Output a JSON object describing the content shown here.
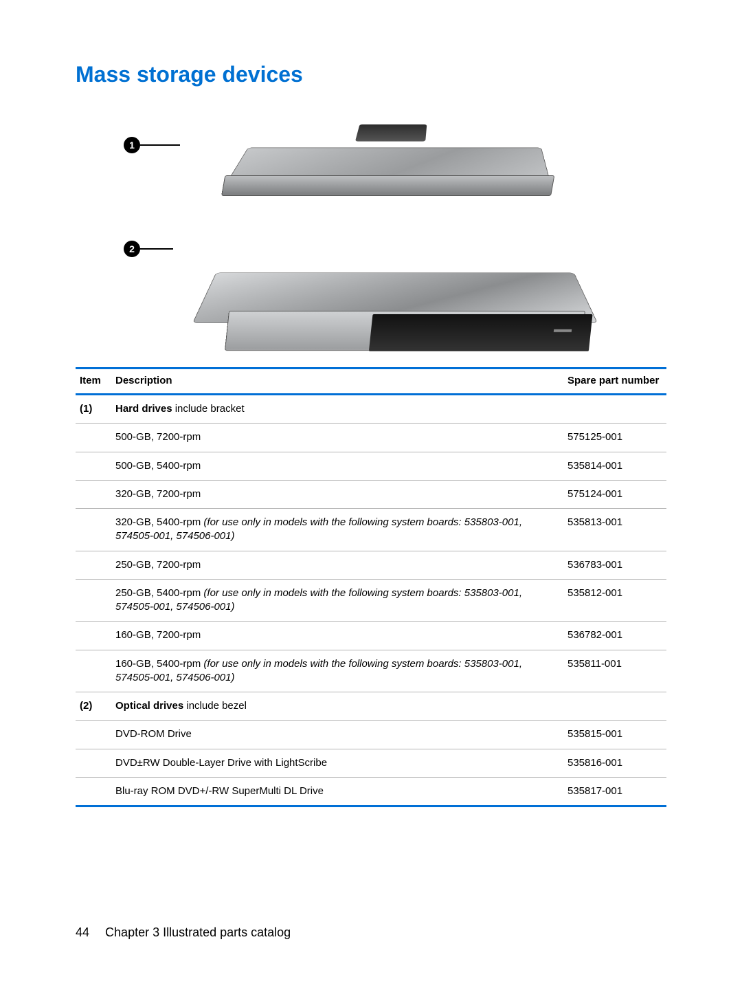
{
  "title": "Mass storage devices",
  "callouts": {
    "one": "1",
    "two": "2"
  },
  "table": {
    "headers": {
      "item": "Item",
      "desc": "Description",
      "spn": "Spare part number"
    },
    "groups": [
      {
        "item": "(1)",
        "label_bold": "Hard drives",
        "label_rest": " include bracket",
        "rows": [
          {
            "desc_plain": "500-GB, 7200-rpm",
            "spn": "575125-001"
          },
          {
            "desc_plain": "500-GB, 5400-rpm",
            "spn": "535814-001"
          },
          {
            "desc_plain": "320-GB, 7200-rpm",
            "spn": "575124-001"
          },
          {
            "desc_plain": "320-GB, 5400-rpm ",
            "desc_italic": "(for use only in models with the following system boards: 535803-001, 574505-001, 574506-001)",
            "spn": "535813-001"
          },
          {
            "desc_plain": "250-GB, 7200-rpm",
            "spn": "536783-001"
          },
          {
            "desc_plain": "250-GB, 5400-rpm ",
            "desc_italic": "(for use only in models with the following system boards: 535803-001, 574505-001, 574506-001)",
            "spn": "535812-001"
          },
          {
            "desc_plain": "160-GB, 7200-rpm",
            "spn": "536782-001"
          },
          {
            "desc_plain": "160-GB, 5400-rpm ",
            "desc_italic": "(for use only in models with the following system boards: 535803-001, 574505-001, 574506-001)",
            "spn": "535811-001"
          }
        ]
      },
      {
        "item": "(2)",
        "label_bold": "Optical drives",
        "label_rest": " include bezel",
        "rows": [
          {
            "desc_plain": "DVD-ROM Drive",
            "spn": "535815-001"
          },
          {
            "desc_plain": "DVD±RW Double-Layer Drive with LightScribe",
            "spn": "535816-001"
          },
          {
            "desc_plain": "Blu-ray ROM DVD+/-RW SuperMulti DL Drive",
            "spn": "535817-001"
          }
        ]
      }
    ]
  },
  "footer": {
    "page": "44",
    "chapter": "Chapter 3   Illustrated parts catalog"
  },
  "colors": {
    "accent": "#006fd6",
    "rule": "#b3b3b3",
    "text": "#000000"
  }
}
